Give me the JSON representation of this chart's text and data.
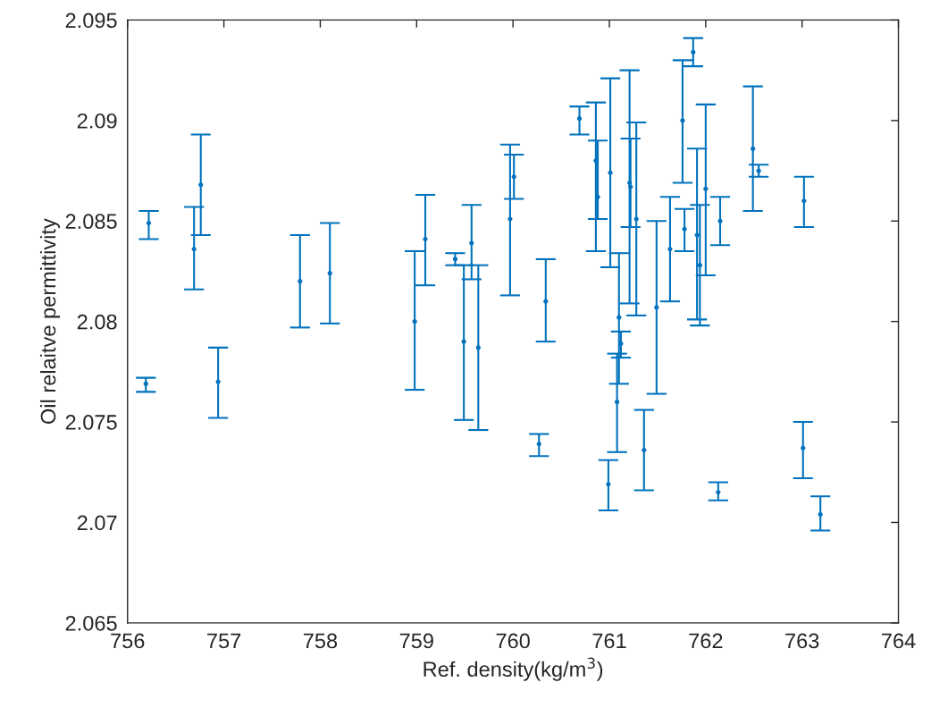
{
  "chart_data": {
    "type": "scatter",
    "xlabel": "Ref. density(kg/m$^{3}$)",
    "ylabel": "Oil relaitve permittivity",
    "xlim": [
      756,
      764
    ],
    "xticks": [
      756,
      757,
      758,
      759,
      760,
      761,
      762,
      763,
      764
    ],
    "ylim": [
      2.065,
      2.095
    ],
    "yticks": [
      2.065,
      2.07,
      2.075,
      2.08,
      2.085,
      2.09,
      2.095
    ],
    "grid": false,
    "marker": "circle",
    "series": [
      {
        "color": "#0072bd",
        "x": [
          756.22,
          756.19,
          756.69,
          756.76,
          756.94,
          757.79,
          758.1,
          758.98,
          759.09,
          759.4,
          759.49,
          759.57,
          759.64,
          759.97,
          760.01,
          760.27,
          760.34,
          760.69,
          760.86,
          760.88,
          761.01,
          761.1,
          761.12,
          761.08,
          761.21,
          761.22,
          761.28,
          760.99,
          761.36,
          761.49,
          761.63,
          761.76,
          761.78,
          761.87,
          761.91,
          761.94,
          762.0,
          762.15,
          762.13,
          762.49,
          762.55,
          763.02,
          763.01,
          763.19
        ],
        "values": [
          2.0849,
          2.0769,
          2.0836,
          2.0868,
          2.077,
          2.082,
          2.0824,
          2.08,
          2.0841,
          2.0831,
          2.079,
          2.0839,
          2.0787,
          2.0851,
          2.0872,
          2.0739,
          2.081,
          2.0901,
          2.088,
          2.0862,
          2.0874,
          2.0802,
          2.0789,
          2.076,
          2.0869,
          2.0867,
          2.0851,
          2.0719,
          2.0736,
          2.0807,
          2.0836,
          2.09,
          2.0846,
          2.0934,
          2.0843,
          2.0828,
          2.0866,
          2.085,
          2.0715,
          2.0886,
          2.0875,
          2.086,
          2.0737,
          2.0704
        ],
        "errors": [
          [
            2.0841,
            2.0855
          ],
          [
            2.0765,
            2.0772
          ],
          [
            2.0816,
            2.0857
          ],
          [
            2.0843,
            2.0893
          ],
          [
            2.0752,
            2.0787
          ],
          [
            2.0797,
            2.0843
          ],
          [
            2.0799,
            2.0849
          ],
          [
            2.0766,
            2.0835
          ],
          [
            2.0818,
            2.0863
          ],
          [
            2.0828,
            2.0834
          ],
          [
            2.0751,
            2.0828
          ],
          [
            2.0821,
            2.0858
          ],
          [
            2.0746,
            2.0828
          ],
          [
            2.0813,
            2.0888
          ],
          [
            2.0861,
            2.0883
          ],
          [
            2.0733,
            2.0744
          ],
          [
            2.079,
            2.0831
          ],
          [
            2.0893,
            2.0907
          ],
          [
            2.0835,
            2.0909
          ],
          [
            2.0851,
            2.089
          ],
          [
            2.0827,
            2.0921
          ],
          [
            2.0769,
            2.0834
          ],
          [
            2.0782,
            2.0795
          ],
          [
            2.0735,
            2.0784
          ],
          [
            2.0809,
            2.0925
          ],
          [
            2.0847,
            2.0891
          ],
          [
            2.0803,
            2.0899
          ],
          [
            2.0706,
            2.0731
          ],
          [
            2.0716,
            2.0756
          ],
          [
            2.0764,
            2.085
          ],
          [
            2.081,
            2.0862
          ],
          [
            2.0869,
            2.093
          ],
          [
            2.0835,
            2.0856
          ],
          [
            2.0927,
            2.0941
          ],
          [
            2.0801,
            2.0886
          ],
          [
            2.0798,
            2.0858
          ],
          [
            2.0823,
            2.0908
          ],
          [
            2.0838,
            2.0862
          ],
          [
            2.0711,
            2.072
          ],
          [
            2.0855,
            2.0917
          ],
          [
            2.0872,
            2.0878
          ],
          [
            2.0847,
            2.0872
          ],
          [
            2.0722,
            2.075
          ],
          [
            2.0696,
            2.0713
          ]
        ]
      }
    ]
  }
}
